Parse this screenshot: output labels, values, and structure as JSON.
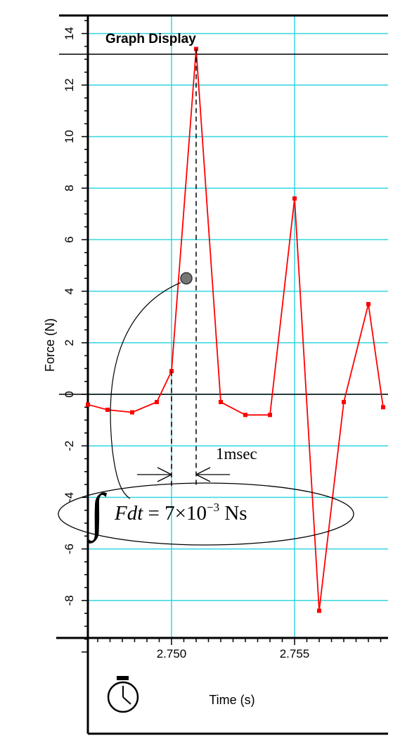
{
  "panel": {
    "title": "Graph Display"
  },
  "icons": {
    "timer": "stopwatch-icon"
  },
  "chart_data": {
    "type": "line",
    "title": "",
    "xlabel": "Time (s)",
    "ylabel": "Force (N)",
    "xlim": [
      2.7466,
      2.7586
    ],
    "ylim": [
      -10,
      14.5
    ],
    "x_tick_labels": [
      "2.750",
      "2.755"
    ],
    "y_tick_labels": [
      "14",
      "12",
      "10",
      "8",
      "6",
      "4",
      "2",
      "0",
      "-2",
      "-4",
      "-6",
      "-8"
    ],
    "grid": true,
    "series": [
      {
        "color": "#ff0000",
        "x": [
          2.7466,
          2.7474,
          2.7484,
          2.7494,
          2.75,
          2.751,
          2.752,
          2.753,
          2.754,
          2.755,
          2.756,
          2.757,
          2.758,
          2.7586
        ],
        "y": [
          -0.4,
          -0.6,
          -0.7,
          -0.3,
          0.9,
          13.4,
          -0.3,
          -0.8,
          -0.8,
          7.6,
          -8.4,
          -0.3,
          3.5,
          -0.5
        ]
      }
    ],
    "annotations": {
      "marker": {
        "x": 2.7506,
        "y": 4.5
      },
      "interval_label": "1msec",
      "interval": [
        2.75,
        2.751
      ],
      "equation": {
        "integrand": "Fdt",
        "equals": " = 7×10",
        "exponent": "−3",
        "unit": " Ns"
      }
    }
  }
}
